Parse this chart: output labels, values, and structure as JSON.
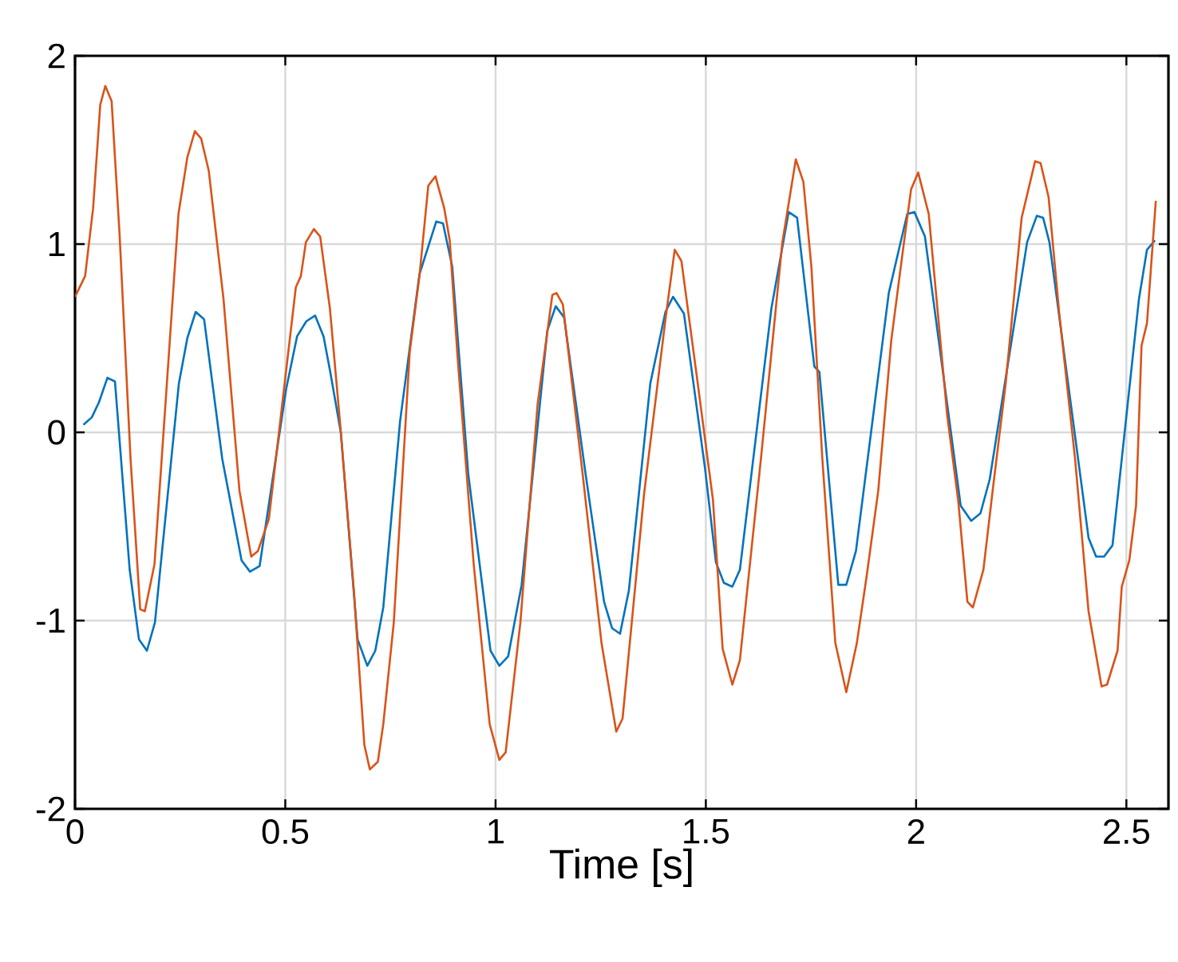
{
  "chart_data": {
    "type": "line",
    "xlabel": "Time [s]",
    "xlim": [
      0,
      2.6
    ],
    "ylim": [
      -2,
      2
    ],
    "xticks": [
      0,
      0.5,
      1,
      1.5,
      2,
      2.5
    ],
    "yticks": [
      -2,
      -1,
      0,
      1,
      2
    ],
    "grid": true,
    "marker": "none",
    "line_style": "solid",
    "series": [
      {
        "color": "#0072bd",
        "x": [
          0.02,
          0.04,
          0.057,
          0.077,
          0.095,
          0.13,
          0.152,
          0.171,
          0.19,
          0.247,
          0.267,
          0.287,
          0.307,
          0.35,
          0.396,
          0.416,
          0.439,
          0.502,
          0.528,
          0.55,
          0.571,
          0.591,
          0.607,
          0.632,
          0.672,
          0.695,
          0.714,
          0.733,
          0.773,
          0.819,
          0.859,
          0.875,
          0.897,
          0.935,
          0.988,
          1.009,
          1.03,
          1.062,
          1.123,
          1.143,
          1.163,
          1.214,
          1.258,
          1.277,
          1.296,
          1.317,
          1.368,
          1.404,
          1.422,
          1.448,
          1.498,
          1.524,
          1.543,
          1.563,
          1.581,
          1.656,
          1.697,
          1.717,
          1.758,
          1.77,
          1.815,
          1.834,
          1.857,
          1.935,
          1.96,
          1.979,
          1.996,
          2.021,
          2.106,
          2.131,
          2.153,
          2.175,
          2.264,
          2.287,
          2.302,
          2.317,
          2.41,
          2.428,
          2.447,
          2.467,
          2.53,
          2.549,
          2.568
        ],
        "values": [
          0.04,
          0.08,
          0.16,
          0.29,
          0.27,
          -0.73,
          -1.1,
          -1.16,
          -1.01,
          0.26,
          0.5,
          0.64,
          0.6,
          -0.14,
          -0.68,
          -0.74,
          -0.71,
          0.23,
          0.51,
          0.59,
          0.62,
          0.51,
          0.32,
          0.0,
          -1.1,
          -1.24,
          -1.16,
          -0.93,
          0.06,
          0.84,
          1.12,
          1.11,
          0.88,
          -0.22,
          -1.16,
          -1.24,
          -1.19,
          -0.81,
          0.54,
          0.67,
          0.61,
          -0.22,
          -0.9,
          -1.04,
          -1.07,
          -0.84,
          0.26,
          0.64,
          0.72,
          0.63,
          -0.19,
          -0.69,
          -0.8,
          -0.82,
          -0.73,
          0.66,
          1.17,
          1.14,
          0.35,
          0.32,
          -0.81,
          -0.81,
          -0.63,
          0.74,
          0.98,
          1.16,
          1.17,
          1.04,
          -0.39,
          -0.47,
          -0.43,
          -0.25,
          1.01,
          1.15,
          1.14,
          1.01,
          -0.56,
          -0.66,
          -0.66,
          -0.6,
          0.71,
          0.97,
          1.02
        ]
      },
      {
        "color": "#d95319",
        "x": [
          0,
          0.024,
          0.043,
          0.06,
          0.072,
          0.087,
          0.106,
          0.132,
          0.155,
          0.166,
          0.189,
          0.246,
          0.267,
          0.285,
          0.3,
          0.318,
          0.353,
          0.391,
          0.419,
          0.435,
          0.461,
          0.525,
          0.537,
          0.549,
          0.568,
          0.583,
          0.606,
          0.631,
          0.663,
          0.688,
          0.701,
          0.72,
          0.733,
          0.758,
          0.796,
          0.819,
          0.84,
          0.857,
          0.878,
          0.891,
          0.91,
          0.948,
          0.986,
          1.009,
          1.024,
          1.059,
          1.1,
          1.135,
          1.145,
          1.16,
          1.207,
          1.252,
          1.287,
          1.302,
          1.353,
          1.404,
          1.426,
          1.442,
          1.479,
          1.517,
          1.54,
          1.563,
          1.581,
          1.631,
          1.682,
          1.714,
          1.732,
          1.751,
          1.777,
          1.808,
          1.834,
          1.859,
          1.882,
          1.91,
          1.941,
          1.97,
          1.988,
          2.005,
          2.03,
          2.074,
          2.1,
          2.122,
          2.135,
          2.16,
          2.182,
          2.213,
          2.251,
          2.283,
          2.296,
          2.315,
          2.34,
          2.378,
          2.41,
          2.441,
          2.454,
          2.479,
          2.489,
          2.507,
          2.523,
          2.536,
          2.549,
          2.57
        ],
        "values": [
          0.72,
          0.83,
          1.19,
          1.74,
          1.84,
          1.76,
          1.05,
          -0.14,
          -0.94,
          -0.95,
          -0.7,
          1.16,
          1.46,
          1.6,
          1.56,
          1.39,
          0.71,
          -0.31,
          -0.66,
          -0.63,
          -0.46,
          0.77,
          0.83,
          1.01,
          1.08,
          1.04,
          0.66,
          0.03,
          -0.84,
          -1.66,
          -1.79,
          -1.75,
          -1.55,
          -1.01,
          0.43,
          0.83,
          1.31,
          1.36,
          1.19,
          1.02,
          0.39,
          -0.7,
          -1.55,
          -1.74,
          -1.7,
          -1.01,
          0.15,
          0.73,
          0.74,
          0.68,
          -0.22,
          -1.12,
          -1.59,
          -1.52,
          -0.33,
          0.6,
          0.97,
          0.91,
          0.29,
          -0.36,
          -1.15,
          -1.34,
          -1.21,
          -0.14,
          1.01,
          1.45,
          1.33,
          0.88,
          -0.14,
          -1.12,
          -1.38,
          -1.12,
          -0.77,
          -0.31,
          0.49,
          0.99,
          1.29,
          1.38,
          1.16,
          0.09,
          -0.36,
          -0.9,
          -0.93,
          -0.73,
          -0.31,
          0.26,
          1.14,
          1.44,
          1.43,
          1.25,
          0.64,
          -0.14,
          -0.95,
          -1.35,
          -1.34,
          -1.16,
          -0.82,
          -0.68,
          -0.39,
          0.46,
          0.58,
          1.23
        ]
      }
    ]
  }
}
